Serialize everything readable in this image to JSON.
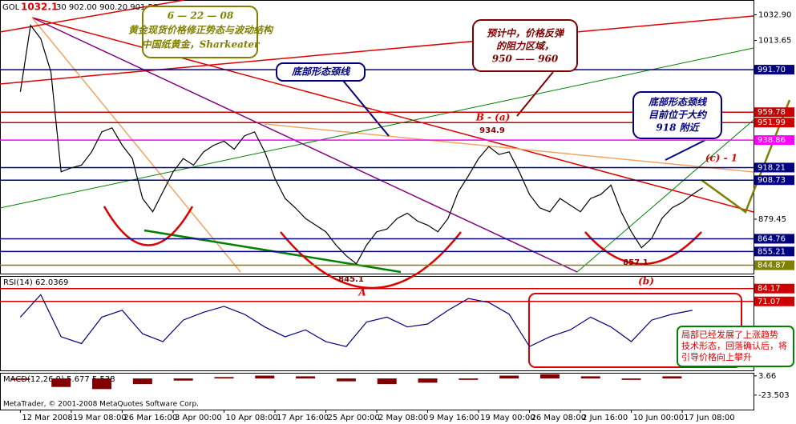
{
  "header": {
    "symbol": "GOL",
    "quote": "30 902.00 900.20 901.50",
    "copyright": "MetaTrader, © 2001-2008 MetaQuotes Software Corp."
  },
  "annotations": {
    "title_box": [
      "6 — 22 — 08",
      "黄金现货价格修正势态与波动结构",
      "中国纸黄金，Sharkeater"
    ],
    "resistance_box": [
      "预计中，价格反弹",
      "的阻力区域，",
      "950 —— 960"
    ],
    "neckline_box": [
      "底部形态颈线"
    ],
    "neckline_now_box": [
      "底部形态颈线",
      "目前位于大约",
      "918 附近"
    ],
    "trend_box": [
      "局部已经发展了上涨趋势",
      "技术形态，回落确认后，将",
      "引导价格向上攀升"
    ],
    "high": "1032.1",
    "wave_b_a": "B - (a)",
    "peak": "934.9",
    "low_a": "845.1",
    "wave_a": "A",
    "low_b": "857.1",
    "wave_b": "(b)",
    "wave_c": "(c) - 1"
  },
  "chart_data": [
    {
      "type": "line",
      "name": "price",
      "color": "#000000",
      "x": [
        0,
        2,
        4,
        6,
        8,
        10,
        12,
        14,
        16,
        18,
        20,
        22,
        24,
        26,
        28,
        30,
        32,
        34,
        36,
        38,
        40,
        42,
        44,
        46,
        48,
        50,
        52,
        54,
        56,
        58,
        60,
        62,
        64,
        66,
        68,
        70,
        72,
        74,
        76,
        78,
        80,
        82,
        84,
        86,
        88,
        90,
        92,
        94,
        96,
        98,
        100,
        102,
        104,
        106,
        108,
        110,
        112,
        114,
        116,
        118,
        120,
        122,
        124,
        126,
        128,
        130,
        132,
        134
      ],
      "values": [
        975,
        1025,
        1015,
        990,
        915,
        918,
        920,
        930,
        945,
        948,
        935,
        925,
        895,
        885,
        900,
        915,
        925,
        920,
        930,
        935,
        938,
        932,
        942,
        945,
        930,
        910,
        895,
        888,
        880,
        875,
        870,
        860,
        852,
        846,
        860,
        870,
        872,
        880,
        884,
        878,
        875,
        870,
        880,
        900,
        912,
        925,
        934,
        928,
        930,
        915,
        898,
        888,
        885,
        895,
        890,
        885,
        895,
        898,
        905,
        885,
        870,
        858,
        865,
        880,
        888,
        892,
        898,
        903
      ],
      "xlim": [
        -4,
        144
      ],
      "ylim": [
        838,
        1044
      ],
      "xticks": [
        {
          "value": 0,
          "label": "12 Mar 2008"
        },
        {
          "value": 10,
          "label": "19 Mar 08:00"
        },
        {
          "value": 20,
          "label": "26 Mar 16:00"
        },
        {
          "value": 30,
          "label": "3 Apr 00:00"
        },
        {
          "value": 40,
          "label": "10 Apr 08:00"
        },
        {
          "value": 50,
          "label": "17 Apr 16:00"
        },
        {
          "value": 60,
          "label": "25 Apr 00:00"
        },
        {
          "value": 70,
          "label": "2 May 08:00"
        },
        {
          "value": 80,
          "label": "9 May 16:00"
        },
        {
          "value": 90,
          "label": "19 May 00:00"
        },
        {
          "value": 100,
          "label": "26 May 08:00"
        },
        {
          "value": 110,
          "label": "2 Jun 16:00"
        },
        {
          "value": 120,
          "label": "10 Jun 00:00"
        },
        {
          "value": 130,
          "label": "17 Jun 08:00"
        }
      ],
      "yticks": [
        {
          "value": 1032.9,
          "label": "1032.90"
        },
        1013.65,
        879.45
      ],
      "levels": [
        {
          "value": 991.7,
          "label": "991.70",
          "color": "#000080"
        },
        {
          "value": 959.78,
          "label": "959.78",
          "color": "#cc0000"
        },
        {
          "value": 951.99,
          "label": "951.99",
          "color": "#cc0000"
        },
        {
          "value": 938.86,
          "label": "938.86",
          "color": "#ff00ff"
        },
        {
          "value": 918.21,
          "label": "918.21",
          "color": "#000080"
        },
        {
          "value": 908.73,
          "label": "908.73",
          "color": "#000080"
        },
        {
          "value": 864.76,
          "label": "864.76",
          "color": "#000080"
        },
        {
          "value": 855.21,
          "label": "855.21",
          "color": "#000080"
        },
        {
          "value": 844.87,
          "label": "844.87",
          "color": "#808000"
        }
      ]
    },
    {
      "type": "line",
      "title": "RSI(14) 62.0369",
      "color": "#000080",
      "x": [
        0,
        4,
        8,
        12,
        16,
        20,
        24,
        28,
        32,
        36,
        40,
        44,
        48,
        52,
        56,
        60,
        64,
        68,
        72,
        76,
        80,
        84,
        88,
        92,
        96,
        100,
        104,
        108,
        112,
        116,
        120,
        124,
        128,
        132
      ],
      "values": [
        55,
        78,
        35,
        28,
        55,
        62,
        38,
        30,
        52,
        60,
        66,
        58,
        45,
        35,
        42,
        30,
        25,
        50,
        55,
        45,
        48,
        62,
        74,
        70,
        58,
        25,
        35,
        42,
        55,
        45,
        30,
        52,
        58,
        62
      ],
      "xlim": [
        -4,
        144
      ],
      "ylim": [
        -1,
        97
      ],
      "levels": [
        {
          "value": 84.17,
          "label": "84.17",
          "color": "#cc0000"
        },
        {
          "value": 71.07,
          "label": "71.07",
          "color": "#cc0000"
        }
      ]
    },
    {
      "type": "bar",
      "title": "MACD(12,26,9) 5.677 5.538",
      "color": "#800000",
      "x": [
        0,
        8,
        16,
        24,
        32,
        40,
        48,
        56,
        64,
        72,
        80,
        88,
        96,
        104,
        112,
        120,
        128
      ],
      "values": [
        -2,
        -12,
        -15,
        -8,
        -3,
        2,
        4,
        3,
        -4,
        -8,
        -6,
        -2,
        4,
        6,
        3,
        -2,
        3
      ],
      "xlim": [
        -4,
        144
      ],
      "ylim": [
        -44,
        8
      ],
      "yticks": [
        {
          "value": 3.66,
          "label": "3.66"
        },
        -23.503
      ]
    }
  ]
}
